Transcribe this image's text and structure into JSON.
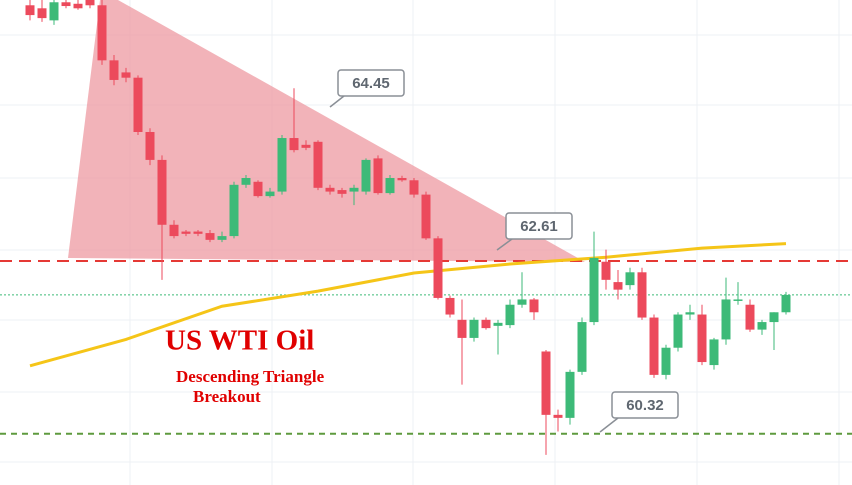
{
  "chart_data": {
    "type": "candlestick",
    "title": "US WTI Oil",
    "subtitle_lines": [
      "Descending Triangle",
      "Breakout"
    ],
    "ylim": [
      59.64,
      66.07
    ],
    "up_color": "#3dba78",
    "down_color": "#ec4a5c",
    "open": [
      66.0,
      65.96,
      65.8,
      66.04,
      66.02,
      66.07,
      66.0,
      65.27,
      65.11,
      65.04,
      64.32,
      63.95,
      63.09,
      63.0,
      63.0,
      62.98,
      62.89,
      62.94,
      63.62,
      63.66,
      63.47,
      63.53,
      64.24,
      64.15,
      64.19,
      63.58,
      63.55,
      63.53,
      63.53,
      63.97,
      63.51,
      63.71,
      63.68,
      63.49,
      62.91,
      62.12,
      61.83,
      61.59,
      61.83,
      61.75,
      61.76,
      62.03,
      62.1,
      61.41,
      60.57,
      60.53,
      61.14,
      61.8,
      62.6,
      62.33,
      62.29,
      62.46,
      61.86,
      61.1,
      61.46,
      61.9,
      61.9,
      61.23,
      61.57,
      62.1,
      62.03,
      61.7,
      61.8,
      61.93
    ],
    "high": [
      66.07,
      66.07,
      66.07,
      66.07,
      66.07,
      66.07,
      66.07,
      65.34,
      65.17,
      65.07,
      64.37,
      64.01,
      63.15,
      63.02,
      63.02,
      63.02,
      63.0,
      63.66,
      63.75,
      63.68,
      63.58,
      64.28,
      64.9,
      64.21,
      64.21,
      63.62,
      63.58,
      63.62,
      63.97,
      64.01,
      63.75,
      63.74,
      63.71,
      63.53,
      62.94,
      62.15,
      62.1,
      61.86,
      61.86,
      61.83,
      62.1,
      62.46,
      62.12,
      61.43,
      60.64,
      61.17,
      61.86,
      63.0,
      62.76,
      62.49,
      62.52,
      62.52,
      61.9,
      61.5,
      61.93,
      62.03,
      62.03,
      61.59,
      62.39,
      62.33,
      62.1,
      61.83,
      61.93,
      62.2
    ],
    "low": [
      65.8,
      65.78,
      65.74,
      65.96,
      65.94,
      65.96,
      65.21,
      64.94,
      64.98,
      64.28,
      63.88,
      62.36,
      62.91,
      62.94,
      62.94,
      62.86,
      62.86,
      62.91,
      63.58,
      63.45,
      63.45,
      63.49,
      64.05,
      64.08,
      63.55,
      63.49,
      63.45,
      63.35,
      63.49,
      63.49,
      63.49,
      63.66,
      63.45,
      62.89,
      62.1,
      61.86,
      60.97,
      61.54,
      61.7,
      61.37,
      61.72,
      61.99,
      61.83,
      60.04,
      60.35,
      60.44,
      61.1,
      61.76,
      62.23,
      62.1,
      62.23,
      61.83,
      61.06,
      61.04,
      61.41,
      61.83,
      61.23,
      61.17,
      61.5,
      62.03,
      61.67,
      61.63,
      61.43,
      61.9
    ],
    "close": [
      65.87,
      65.83,
      66.04,
      65.99,
      65.96,
      66.0,
      65.27,
      65.01,
      65.04,
      64.32,
      63.95,
      63.09,
      62.94,
      62.97,
      62.97,
      62.89,
      62.94,
      63.62,
      63.71,
      63.47,
      63.53,
      64.24,
      64.08,
      64.11,
      63.58,
      63.53,
      63.5,
      63.58,
      63.95,
      63.51,
      63.71,
      63.68,
      63.49,
      62.91,
      62.12,
      61.9,
      61.59,
      61.83,
      61.72,
      61.79,
      62.03,
      62.1,
      61.93,
      60.57,
      60.53,
      61.14,
      61.8,
      62.65,
      62.36,
      62.23,
      62.46,
      61.86,
      61.1,
      61.46,
      61.9,
      61.93,
      61.27,
      61.57,
      62.1,
      62.1,
      61.7,
      61.8,
      61.93,
      62.16
    ],
    "ma": {
      "color": "#f5c518",
      "x": [
        0,
        8,
        16,
        24,
        32,
        40,
        48,
        56,
        63
      ],
      "values": [
        61.22,
        61.57,
        62.01,
        62.21,
        62.45,
        62.57,
        62.66,
        62.78,
        62.84
      ]
    },
    "callouts": [
      {
        "value": 64.45,
        "line": null
      },
      {
        "value": 62.61,
        "line": "#e53935"
      },
      {
        "value": 60.32,
        "line": "#5e9a3e"
      }
    ]
  }
}
